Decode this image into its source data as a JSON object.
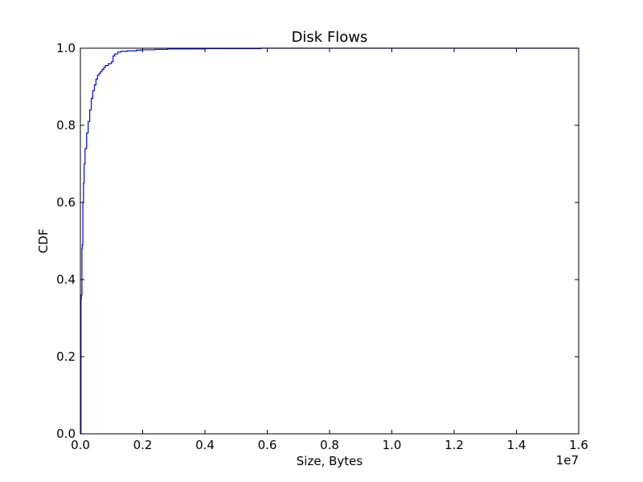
{
  "chart_data": {
    "type": "line",
    "title": "Disk Flows",
    "xlabel": "Size, Bytes",
    "ylabel": "CDF",
    "x_offset_label": "1e7",
    "xlim": [
      0,
      16000000
    ],
    "ylim": [
      0,
      1.0
    ],
    "x_ticks": [
      0,
      2000000,
      4000000,
      6000000,
      8000000,
      10000000,
      12000000,
      14000000,
      16000000
    ],
    "x_tick_labels": [
      "0.0",
      "0.2",
      "0.4",
      "0.6",
      "0.8",
      "1.0",
      "1.2",
      "1.4",
      "1.6"
    ],
    "y_ticks": [
      0,
      0.2,
      0.4,
      0.6,
      0.8,
      1.0
    ],
    "y_tick_labels": [
      "0.0",
      "0.2",
      "0.4",
      "0.6",
      "0.8",
      "1.0"
    ],
    "grid": false,
    "series": [
      {
        "color": "#0000ff",
        "step": true,
        "x": [
          0,
          20000,
          30000,
          50000,
          60000,
          80000,
          100000,
          120000,
          150000,
          200000,
          250000,
          300000,
          350000,
          400000,
          450000,
          500000,
          550000,
          600000,
          650000,
          700000,
          750000,
          800000,
          900000,
          1000000,
          1050000,
          1100000,
          1200000,
          1300000,
          1500000,
          1800000,
          2000000,
          2400000,
          2800000,
          4000000,
          5800000
        ],
        "y": [
          0,
          0.35,
          0.36,
          0.48,
          0.49,
          0.6,
          0.65,
          0.7,
          0.74,
          0.78,
          0.81,
          0.84,
          0.87,
          0.89,
          0.905,
          0.92,
          0.93,
          0.935,
          0.94,
          0.945,
          0.95,
          0.955,
          0.96,
          0.965,
          0.98,
          0.985,
          0.99,
          0.992,
          0.993,
          0.995,
          0.996,
          0.997,
          0.998,
          0.999,
          1.0
        ]
      }
    ]
  }
}
